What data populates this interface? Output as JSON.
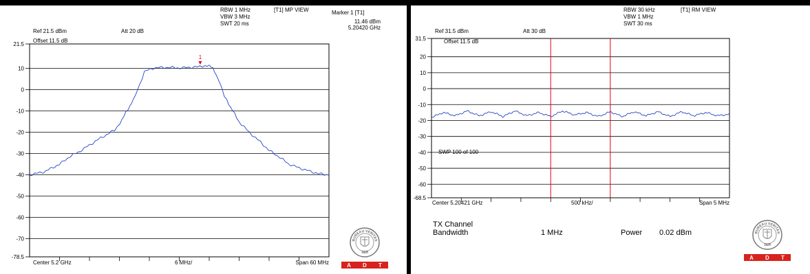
{
  "left": {
    "header": {
      "rbw": "RBW 1 MHz",
      "vbw": "VBW 3 MHz",
      "swt": "SWT 20 ms",
      "view": "[T1] MP VIEW",
      "marker_title": "Marker 1 [T1]",
      "marker_level": "11.46 dBm",
      "marker_freq": "5.20420 GHz",
      "ref": "Ref 21.5 dBm",
      "att": "Att  20 dB",
      "offset": "Offset 11.5 dB"
    },
    "footer": {
      "center": "Center 5.2 GHz",
      "div": "6 MHz/",
      "span": "Span 60 MHz"
    },
    "marker_label": "1"
  },
  "right": {
    "header": {
      "rbw": "RBW 30 kHz",
      "vbw": "VBW 1 MHz",
      "swt": "SWT 30 ms",
      "view": "[T1] RM VIEW",
      "ref": "Ref 31.5 dBm",
      "att": "Att  30 dB",
      "offset": "Offset 11.5 dB",
      "sweep": "SWP 100 of 100"
    },
    "footer": {
      "center": "Center 5.20421 GHz",
      "div": "500 kHz/",
      "span": "Span 5 MHz"
    },
    "channel": {
      "title": "TX Channel",
      "bandwidth_label": "Bandwidth",
      "bandwidth_value": "1 MHz",
      "power_label": "Power",
      "power_value": "0.02 dBm"
    }
  },
  "logo": {
    "brand": "BUREAU VERITAS",
    "year": "1828",
    "adt": [
      "A",
      "D",
      "T"
    ]
  },
  "colors": {
    "trace": "#2642c4",
    "marker": "#e0001a",
    "channel_lines": "#e0001a",
    "logo_red": "#d8221c"
  },
  "chart_data": [
    {
      "type": "line",
      "title": "",
      "xlabel": "",
      "ylabel": "",
      "x_unit": "MHz offset from center (5.2 GHz)",
      "xlim": [
        -30,
        30
      ],
      "ylim": [
        -78.5,
        21.5
      ],
      "yticks": [
        21.5,
        10,
        0,
        -10,
        -20,
        -30,
        -40,
        -50,
        -60,
        -70,
        -78.5
      ],
      "ytick_labels": [
        "21.5",
        "10",
        "0",
        "-10",
        "-20",
        "-30",
        "-40",
        "-50",
        "-60",
        "-70",
        "-78.5"
      ],
      "grid": true,
      "series": [
        {
          "x": [
            -30,
            -27,
            -24,
            -22,
            -20,
            -18,
            -16,
            -13,
            -12,
            -10.5,
            -9,
            -8,
            -7,
            -5,
            -2,
            0,
            2,
            4,
            5,
            6.5,
            7,
            8,
            9,
            10.5,
            12,
            14,
            16,
            18,
            20,
            22,
            25,
            28,
            30
          ],
          "y": [
            -40,
            -38.5,
            -35,
            -31.5,
            -29,
            -26,
            -23,
            -19,
            -16,
            -10,
            -4,
            2,
            8.5,
            10.3,
            10.5,
            10.2,
            10.5,
            10.8,
            11.4,
            10.8,
            9,
            4,
            -3,
            -9,
            -15,
            -20,
            -24,
            -28.5,
            -31.5,
            -35,
            -37.5,
            -39.5,
            -40
          ]
        }
      ],
      "markers": [
        {
          "label": "1",
          "x": 4.2,
          "y": 11.46
        }
      ]
    },
    {
      "type": "line",
      "title": "",
      "xlabel": "",
      "ylabel": "",
      "x_unit": "MHz offset from center (5.20421 GHz)",
      "xlim": [
        -2.5,
        2.5
      ],
      "ylim": [
        -68.5,
        31.5
      ],
      "yticks": [
        31.5,
        20,
        10,
        0,
        -10,
        -20,
        -30,
        -40,
        -50,
        -60,
        -68.5
      ],
      "ytick_labels": [
        "31.5",
        "20",
        "10",
        "0",
        "-10",
        "-20",
        "-30",
        "-40",
        "-50",
        "-60",
        "-68.5"
      ],
      "grid": true,
      "channel_lines_x": [
        -0.5,
        0.5
      ],
      "series": [
        {
          "x": [
            -2.5,
            -2.3,
            -2.1,
            -1.9,
            -1.7,
            -1.5,
            -1.3,
            -1.1,
            -0.9,
            -0.7,
            -0.5,
            -0.3,
            -0.1,
            0.1,
            0.3,
            0.5,
            0.7,
            0.9,
            1.1,
            1.3,
            1.5,
            1.7,
            1.9,
            2.1,
            2.3,
            2.5
          ],
          "y": [
            -18,
            -15,
            -17,
            -14,
            -17,
            -14.5,
            -17.5,
            -14,
            -17,
            -15,
            -17.5,
            -14,
            -16.5,
            -15,
            -17.5,
            -14.5,
            -17.5,
            -14.5,
            -17,
            -14.5,
            -17.5,
            -14.5,
            -17,
            -15,
            -17,
            -16
          ]
        }
      ]
    }
  ]
}
